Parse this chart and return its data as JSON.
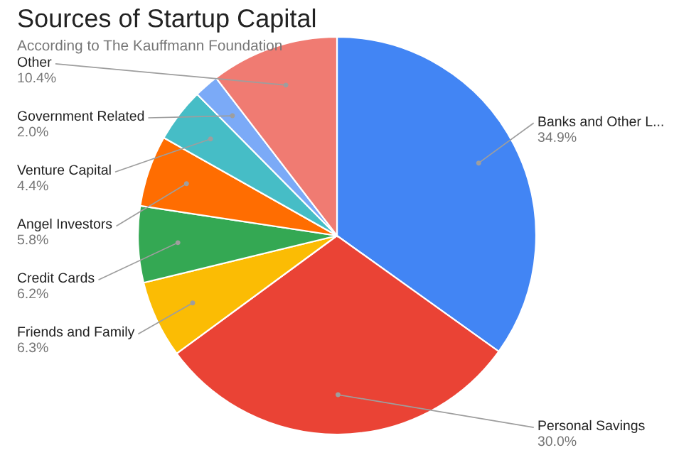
{
  "chart_data": {
    "type": "pie",
    "title": "Sources of Startup Capital",
    "subtitle": "According to The Kauffmann Foundation",
    "categories": [
      "Banks and Other L...",
      "Personal Savings",
      "Friends and Family",
      "Credit Cards",
      "Angel Investors",
      "Venture Capital",
      "Government Related",
      "Other"
    ],
    "values": [
      34.9,
      30.0,
      6.3,
      6.2,
      5.8,
      4.4,
      2.0,
      10.4
    ],
    "value_labels": [
      "34.9%",
      "30.0%",
      "6.3%",
      "6.2%",
      "5.8%",
      "4.4%",
      "2.0%",
      "10.4%"
    ],
    "colors": [
      "#4285f4",
      "#ea4335",
      "#fbbc04",
      "#34a853",
      "#ff6d01",
      "#46bdc6",
      "#7baaf7",
      "#f07b72"
    ],
    "legend": false
  }
}
